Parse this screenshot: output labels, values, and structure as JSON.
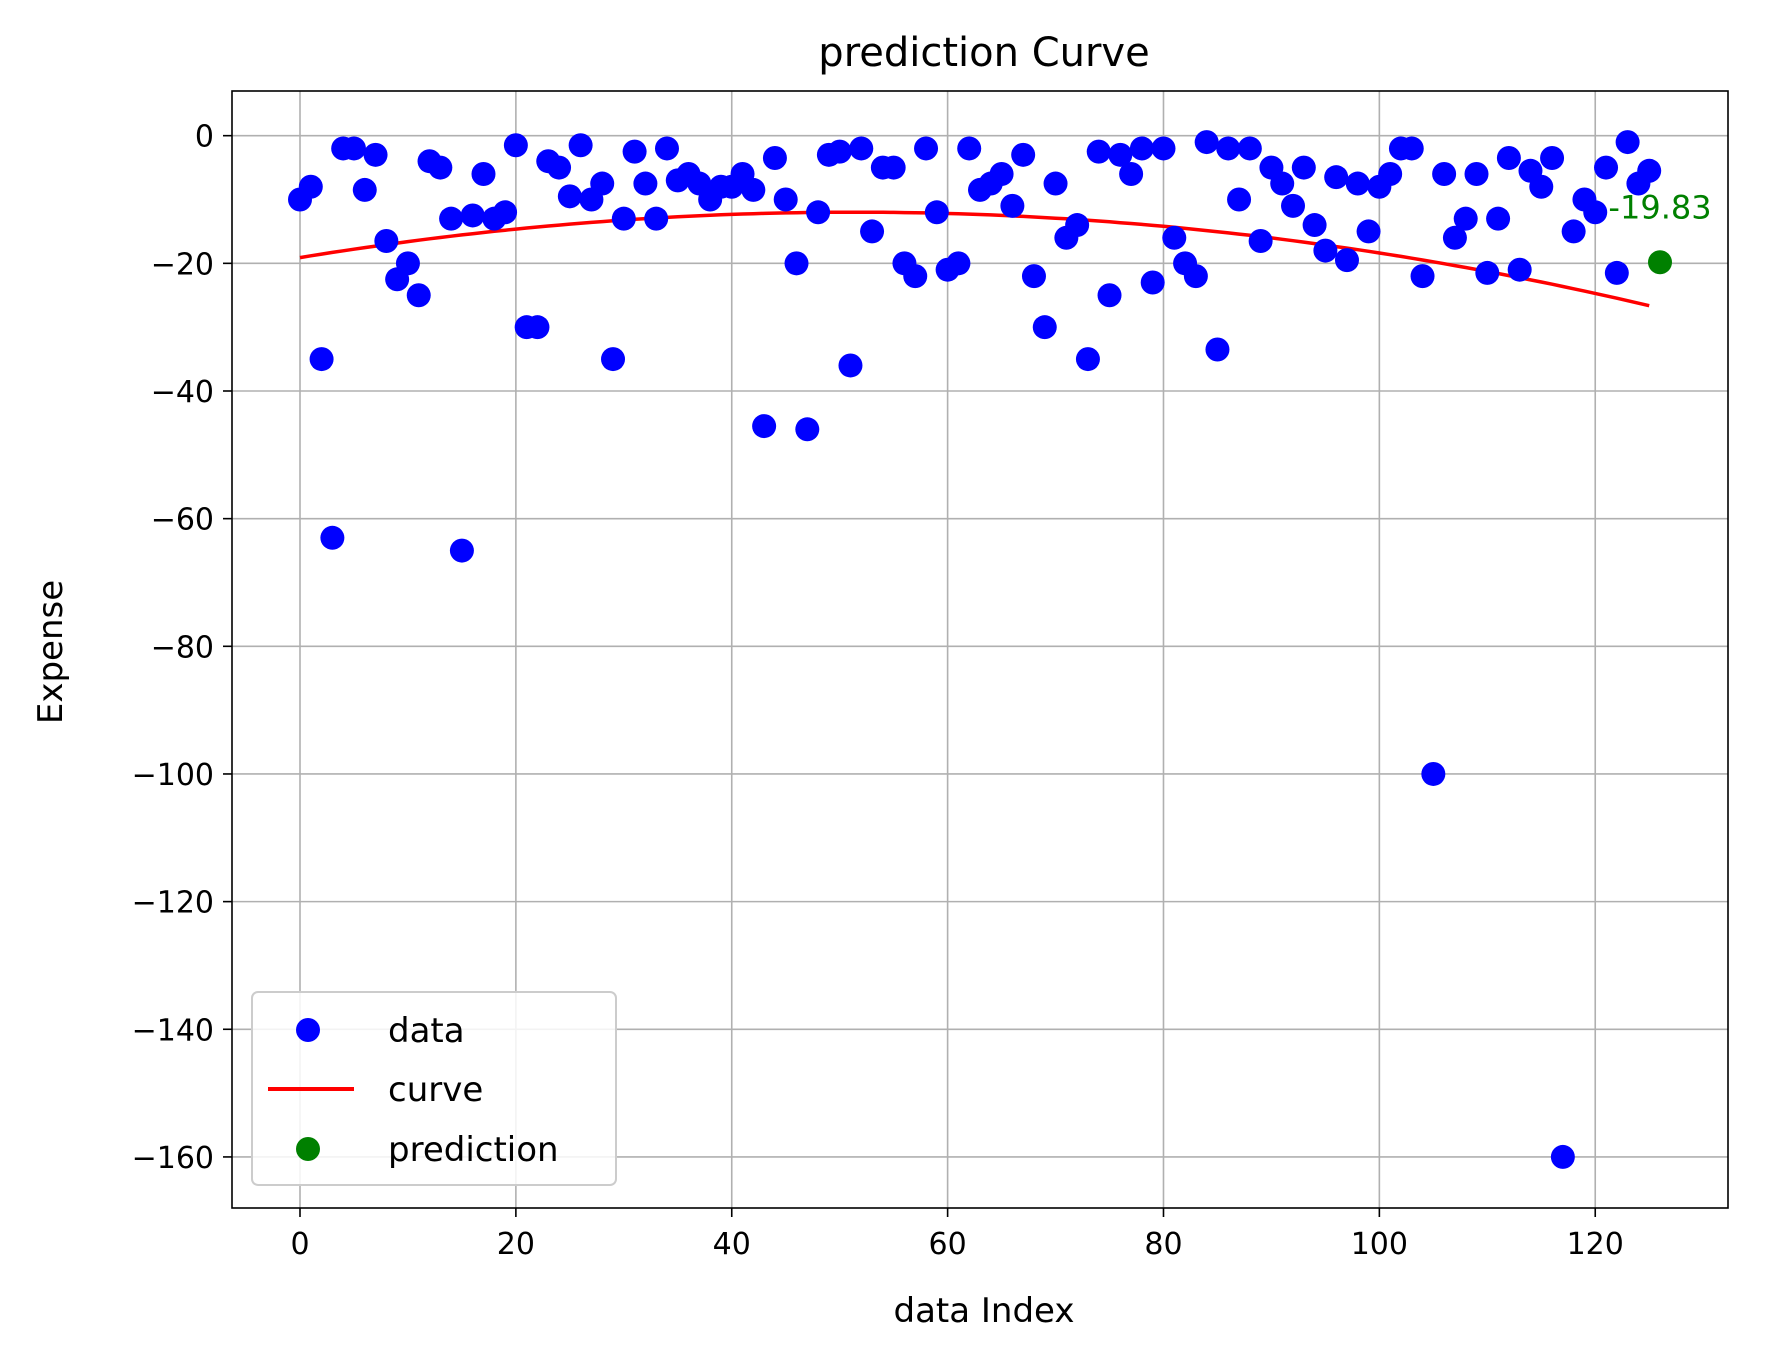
{
  "chart_data": {
    "type": "scatter",
    "title": "prediction Curve",
    "xlabel": "data Index",
    "ylabel": "Expense",
    "xlim": [
      -6.3,
      132.3
    ],
    "ylim": [
      -168,
      7
    ],
    "xticks": [
      0,
      20,
      40,
      60,
      80,
      100,
      120
    ],
    "yticks": [
      0,
      -20,
      -40,
      -60,
      -80,
      -100,
      -120,
      -140,
      -160
    ],
    "ytick_labels": [
      "0",
      "−20",
      "−40",
      "−60",
      "−80",
      "−100",
      "−120",
      "−140",
      "−160"
    ],
    "grid": true,
    "legend_position": "lower-left",
    "colors": {
      "data": "#0000ff",
      "curve": "#ff0000",
      "prediction": "#008000"
    },
    "series": [
      {
        "name": "data",
        "kind": "scatter",
        "y": [
          -10,
          -8,
          -35,
          -63,
          -2,
          -2,
          -8.5,
          -3,
          -16.5,
          -22.5,
          -20,
          -25,
          -4,
          -5,
          -13,
          -65,
          -12.5,
          -6,
          -13,
          -12,
          -1.5,
          -30,
          -30,
          -4,
          -5,
          -9.5,
          -1.5,
          -10,
          -7.5,
          -35,
          -13,
          -2.5,
          -7.5,
          -13,
          -2,
          -7,
          -6,
          -7.5,
          -10,
          -8,
          -8,
          -6,
          -8.5,
          -45.5,
          -3.5,
          -10,
          -20,
          -46,
          -12,
          -3,
          -2.5,
          -36,
          -2,
          -15,
          -5,
          -5,
          -20,
          -22,
          -2,
          -12,
          -21,
          -20,
          -2,
          -8.5,
          -7.5,
          -6,
          -11,
          -3,
          -22,
          -30,
          -7.5,
          -16,
          -14,
          -35,
          -2.5,
          -25,
          -3,
          -6,
          -2,
          -23,
          -2,
          -16,
          -20,
          -22,
          -1,
          -33.5,
          -2,
          -10,
          -2,
          -16.5,
          -5,
          -7.5,
          -11,
          -5,
          -14,
          -18,
          -6.5,
          -19.5,
          -7.5,
          -15,
          -8,
          -6,
          -2,
          -2,
          -22,
          -100,
          -6,
          -16,
          -13,
          -6,
          -21.5,
          -13,
          -3.5,
          -21,
          -5.5,
          -8,
          -3.5,
          -160,
          -15,
          -10,
          -12,
          -5,
          -21.5,
          -1,
          -7.5,
          -5.5
        ]
      },
      {
        "name": "curve",
        "kind": "line",
        "quadratic_fit": {
          "a": -0.0027,
          "b": 0.2772,
          "c": -19.1
        },
        "x_range": [
          0,
          125
        ]
      },
      {
        "name": "prediction",
        "kind": "scatter",
        "x": [
          126
        ],
        "y": [
          -19.83
        ],
        "label": "-19.83"
      }
    ]
  }
}
